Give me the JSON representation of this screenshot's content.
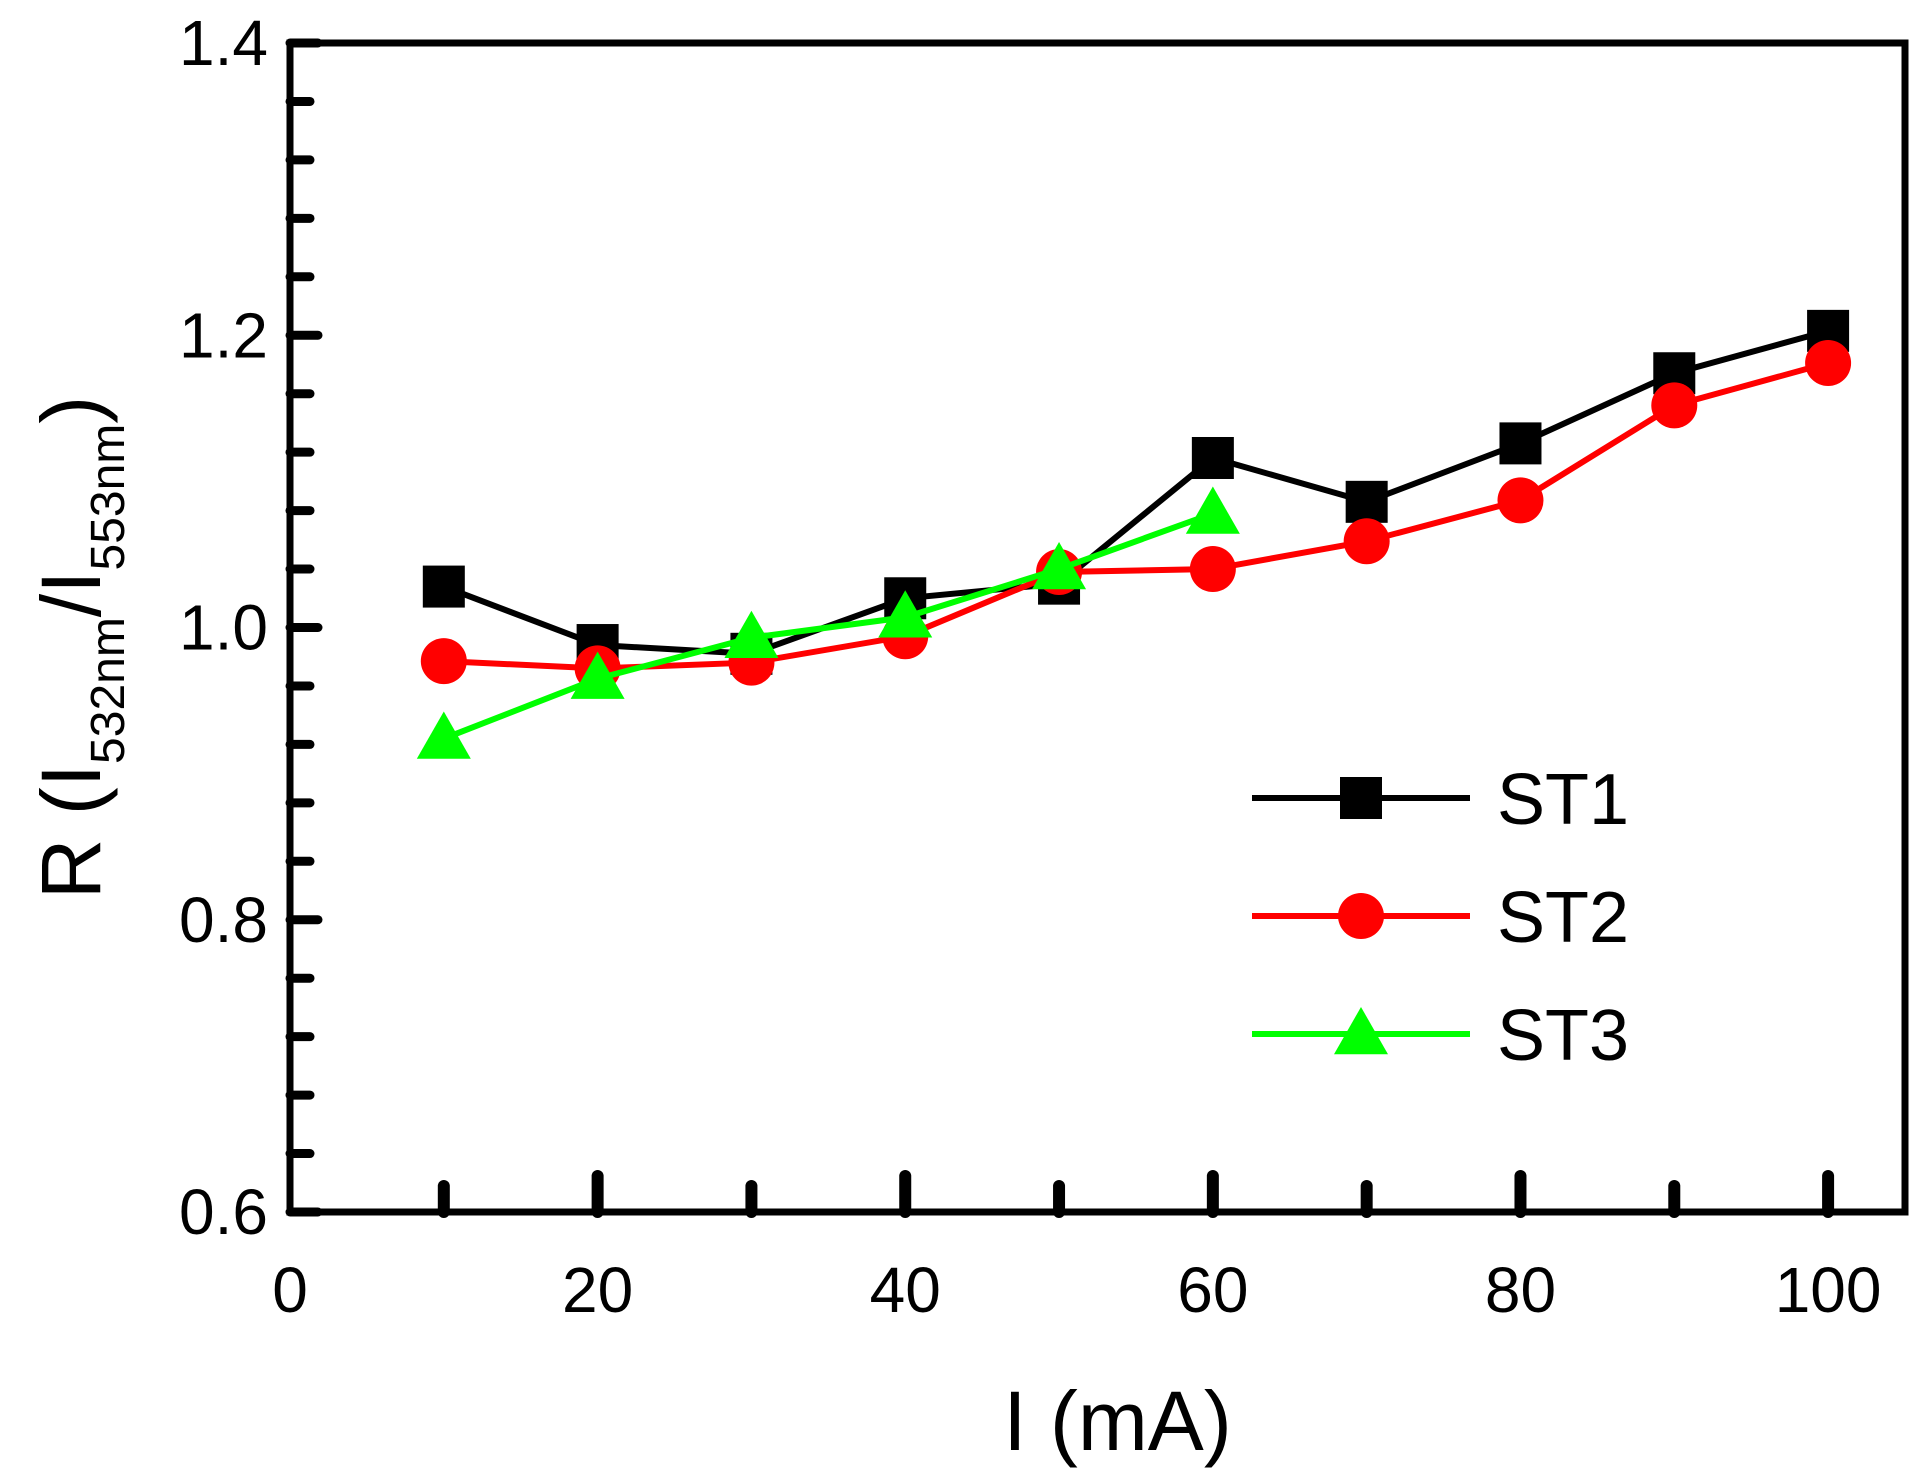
{
  "chart_data": {
    "type": "line",
    "title": "",
    "xlabel": "I (mA)",
    "ylabel": {
      "prefix": "R (I",
      "sub1": "532nm",
      "mid": "/I",
      "sub2": "553nm",
      "suffix": ")"
    },
    "xlim": [
      0,
      105
    ],
    "ylim": [
      0.6,
      1.4
    ],
    "xticks": [
      0,
      20,
      40,
      60,
      80,
      100
    ],
    "xtick_labels": [
      "0",
      "20",
      "40",
      "60",
      "80",
      "100"
    ],
    "yticks": [
      0.6,
      0.8,
      1.0,
      1.2,
      1.4
    ],
    "ytick_labels": [
      "0.6",
      "0.8",
      "1.0",
      "1.2",
      "1.4"
    ],
    "x_minor_ticks": [
      10,
      20,
      30,
      40,
      50,
      60,
      70,
      80,
      90,
      100
    ],
    "y_minor_step": 0.04,
    "grid": false,
    "legend_position": "center-right",
    "series": [
      {
        "name": "ST1",
        "color": "#000000",
        "marker": "square",
        "x": [
          10,
          20,
          30,
          40,
          50,
          60,
          70,
          80,
          90,
          100
        ],
        "y": [
          1.028,
          0.988,
          0.982,
          1.02,
          1.03,
          1.116,
          1.086,
          1.126,
          1.174,
          1.203
        ]
      },
      {
        "name": "ST2",
        "color": "#ff0000",
        "marker": "circle",
        "x": [
          10,
          20,
          30,
          40,
          50,
          60,
          70,
          80,
          90,
          100
        ],
        "y": [
          0.977,
          0.972,
          0.976,
          0.994,
          1.038,
          1.04,
          1.059,
          1.087,
          1.152,
          1.181
        ]
      },
      {
        "name": "ST3",
        "color": "#00ff00",
        "marker": "triangle",
        "x": [
          10,
          20,
          30,
          40,
          50,
          60
        ],
        "y": [
          0.924,
          0.965,
          0.993,
          1.007,
          1.04,
          1.078
        ]
      }
    ]
  }
}
